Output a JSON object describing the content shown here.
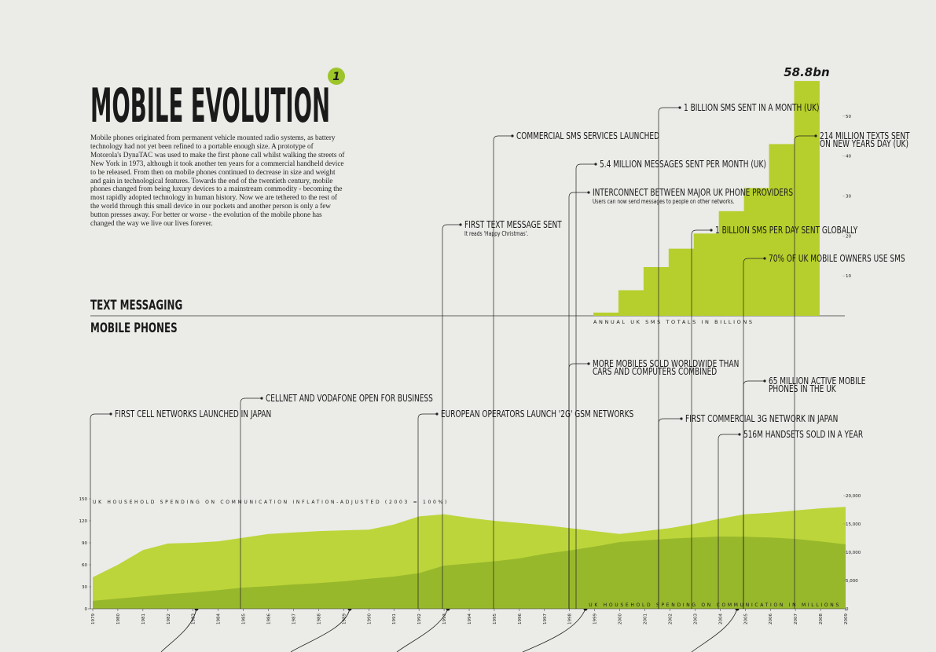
{
  "header": {
    "title": "MOBILE EVOLUTION",
    "badge": "1"
  },
  "intro": "Mobile phones originated from permanent vehicle mounted radio systems, as battery technology had not yet been refined to a portable enough size. A prototype of Motorola's DynaTAC was used to make the first phone call whilst walking the streets of New York in 1973, although it took another ten years for a commercial handheld device to be released. From then on mobile phones continued to decrease in size and weight and gain in technological features. Towards the end of the twentieth century, mobile phones changed from being luxury devices to a mainstream commodity - becoming the most rapidly adopted technology in human history. Now we are tethered to the rest of the world through this small device in our pockets and another person is only a few button presses away. For better or worse - the evolution of the mobile phone has changed the way we live our lives forever.",
  "sections": [
    "TEXT MESSAGING",
    "MOBILE PHONES"
  ],
  "events": [
    {
      "lines": [
        "FIRST CELL NETWORKS LAUNCHED IN JAPAN"
      ]
    },
    {
      "lines": [
        "CELLNET AND VODAFONE OPEN FOR BUSINESS"
      ]
    },
    {
      "lines": [
        "EUROPEAN OPERATORS LAUNCH '2G' GSM NETWORKS"
      ]
    },
    {
      "lines": [
        "FIRST TEXT MESSAGE SENT"
      ],
      "note": "It reads 'Happy Christmas'."
    },
    {
      "lines": [
        "COMMERCIAL SMS SERVICES LAUNCHED"
      ]
    },
    {
      "lines": [
        "5.4 MILLION MESSAGES SENT PER MONTH (UK)"
      ]
    },
    {
      "lines": [
        "INTERCONNECT BETWEEN MAJOR UK PHONE PROVIDERS"
      ],
      "note": "Users can now send messages to people on other networks."
    },
    {
      "lines": [
        "MORE MOBILES SOLD WORLDWIDE THAN",
        "CARS AND COMPUTERS COMBINED"
      ]
    },
    {
      "lines": [
        "1 BILLION SMS SENT IN A MONTH (UK)"
      ]
    },
    {
      "lines": [
        "FIRST COMMERCIAL 3G NETWORK IN JAPAN"
      ]
    },
    {
      "lines": [
        "1 BILLION SMS PER DAY SENT GLOBALLY"
      ]
    },
    {
      "lines": [
        "516M HANDSETS SOLD IN A YEAR"
      ]
    },
    {
      "lines": [
        "70% OF UK MOBILE OWNERS USE SMS"
      ]
    },
    {
      "lines": [
        "65 MILLION ACTIVE MOBILE",
        "PHONES IN THE UK"
      ]
    },
    {
      "lines": [
        "214 MILLION TEXTS SENT",
        "ON NEW YEARS DAY (UK)"
      ]
    }
  ],
  "chart_data": [
    {
      "type": "bar",
      "x_label": "ANNUAL UK SMS TOTALS IN BILLIONS",
      "values": [
        0.8,
        6.4,
        12.2,
        16.8,
        20.6,
        26.2,
        32,
        43,
        58.8
      ],
      "value_labels": [
        null,
        null,
        null,
        null,
        null,
        null,
        null,
        null,
        "58.8bn"
      ],
      "color": "#b6cf2c",
      "ylim": [
        0,
        60
      ],
      "yticks": [
        10,
        20,
        30,
        40,
        50
      ]
    },
    {
      "type": "area",
      "x": [
        1979,
        1980,
        1981,
        1982,
        1983,
        1984,
        1985,
        1986,
        1987,
        1988,
        1989,
        1990,
        1991,
        1992,
        1993,
        1994,
        1995,
        1996,
        1997,
        1998,
        1999,
        2000,
        2001,
        2002,
        2003,
        2004,
        2005,
        2006,
        2007,
        2008,
        2009
      ],
      "xlim": [
        1979,
        2009
      ],
      "ylim": [
        0,
        150
      ],
      "yticks": [
        0,
        30,
        60,
        90,
        120,
        150
      ],
      "y2lim": [
        0,
        20000
      ],
      "y2ticks": [
        0,
        {
          "value": 5000,
          "label": "5,000"
        },
        {
          "value": 10000,
          "label": "10,000"
        },
        {
          "value": 15000,
          "label": "15,000"
        },
        {
          "value": 20000,
          "label": "20,000"
        }
      ],
      "series": [
        {
          "name": "UK HOUSEHOLD SPENDING ON COMMUNICATION INFLATION-ADJUSTED (2003 = 100%)",
          "color": "#bcd53a",
          "values": [
            43,
            60,
            80,
            89,
            90,
            92,
            97,
            102,
            104,
            106,
            107,
            108,
            115,
            126,
            129,
            124,
            120,
            117,
            114,
            110,
            106,
            102,
            106,
            110,
            116,
            123,
            129,
            131,
            134,
            137,
            139
          ]
        },
        {
          "name": "UK HOUSEHOLD SPENDING ON COMMUNICATION IN MILLIONS",
          "color": "#93b52b",
          "axis": "y2",
          "values": [
            1400,
            1800,
            2200,
            2600,
            2900,
            3300,
            3750,
            4000,
            4300,
            4550,
            4860,
            5300,
            5700,
            6300,
            7640,
            8000,
            8400,
            8900,
            9720,
            10300,
            11000,
            11800,
            12100,
            12400,
            12600,
            12780,
            12750,
            12600,
            12360,
            11900,
            11390
          ]
        }
      ]
    }
  ]
}
